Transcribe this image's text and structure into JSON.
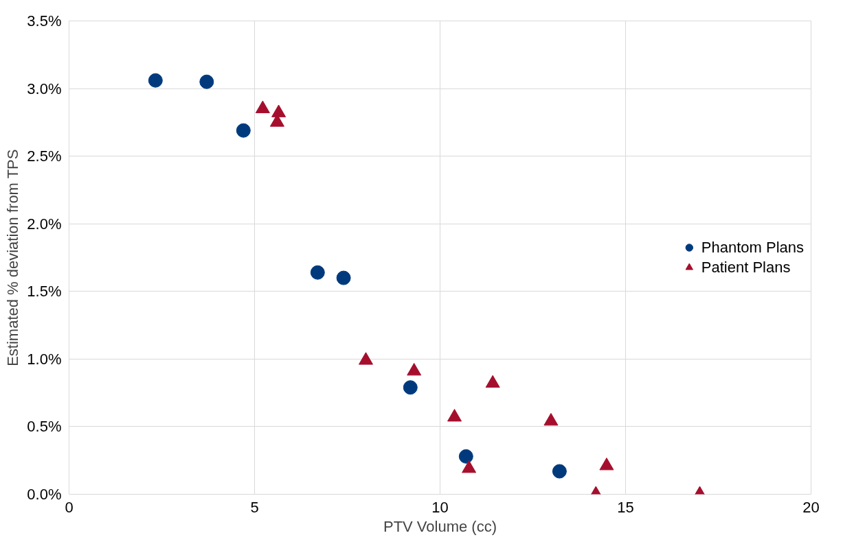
{
  "chart_data": {
    "type": "scatter",
    "xlabel": "PTV Volume (cc)",
    "ylabel": "Estimated % deviation from TPS",
    "xlim": [
      0,
      20
    ],
    "xticks": [
      0,
      5,
      10,
      15,
      20
    ],
    "ylim": [
      0,
      3.5
    ],
    "yticks": [
      {
        "value": 0,
        "label": "0.0%"
      },
      {
        "value": 0.5,
        "label": "0.5%"
      },
      {
        "value": 1.0,
        "label": "1.0%"
      },
      {
        "value": 1.5,
        "label": "1.5%"
      },
      {
        "value": 2.0,
        "label": "2.0%"
      },
      {
        "value": 2.5,
        "label": "2.5%"
      },
      {
        "value": 3.0,
        "label": "3.0%"
      },
      {
        "value": 3.5,
        "label": "3.5%"
      }
    ],
    "grid": true,
    "legend": "right",
    "series": [
      {
        "name": "Phantom Plans",
        "color": "#003a7d",
        "marker": "circle",
        "x": [
          2.33,
          3.71,
          4.7,
          6.7,
          7.4,
          9.2,
          10.7,
          13.22
        ],
        "values": [
          3.06,
          3.05,
          2.69,
          1.64,
          1.6,
          0.79,
          0.28,
          0.17
        ]
      },
      {
        "name": "Patient Plans",
        "color": "#a50f2d",
        "marker": "triangle",
        "x": [
          5.22,
          5.65,
          5.61,
          8.0,
          9.3,
          10.39,
          11.42,
          12.99,
          10.78,
          14.49,
          14.2,
          17.0
        ],
        "values": [
          2.85,
          2.82,
          2.75,
          0.99,
          0.91,
          0.57,
          0.82,
          0.54,
          0.19,
          0.21,
          0.0,
          0.0
        ]
      }
    ]
  }
}
